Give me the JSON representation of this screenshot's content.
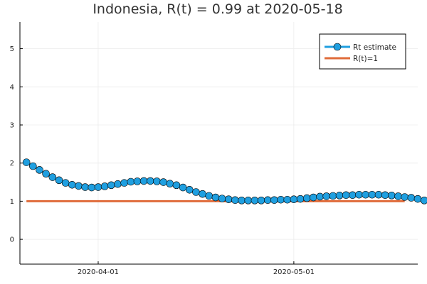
{
  "chart_data": {
    "type": "line",
    "title": "Indonesia, R(t) = 0.99 at 2020-05-18",
    "xlabel": "",
    "ylabel": "",
    "x_axis": {
      "type": "date",
      "range": [
        "2020-03-20",
        "2020-05-20"
      ],
      "ticks": [
        "2020-04-01",
        "2020-05-01"
      ]
    },
    "y_axis": {
      "range": [
        -0.65,
        5.7
      ],
      "ticks": [
        0,
        1,
        2,
        3,
        4,
        5
      ]
    },
    "grid": true,
    "legend_position": "top-right",
    "series": [
      {
        "name": "Rt estimate",
        "color": "#1f9fe0",
        "marker": "circle",
        "start_date": "2020-03-21",
        "end_date": "2020-05-18",
        "y": [
          2.02,
          1.92,
          1.82,
          1.72,
          1.63,
          1.55,
          1.48,
          1.43,
          1.4,
          1.37,
          1.36,
          1.37,
          1.39,
          1.42,
          1.45,
          1.48,
          1.51,
          1.52,
          1.53,
          1.53,
          1.52,
          1.5,
          1.46,
          1.42,
          1.36,
          1.3,
          1.24,
          1.19,
          1.14,
          1.1,
          1.07,
          1.05,
          1.03,
          1.02,
          1.02,
          1.02,
          1.02,
          1.03,
          1.03,
          1.04,
          1.04,
          1.05,
          1.06,
          1.08,
          1.1,
          1.12,
          1.13,
          1.14,
          1.15,
          1.16,
          1.16,
          1.17,
          1.17,
          1.17,
          1.17,
          1.16,
          1.15,
          1.13,
          1.11,
          1.09,
          1.06,
          1.02,
          0.99
        ]
      },
      {
        "name": "R(t)=1",
        "color": "#e06b3a",
        "marker": "none",
        "x": [
          "2020-03-21",
          "2020-05-18"
        ],
        "y": [
          1,
          1
        ]
      }
    ]
  }
}
